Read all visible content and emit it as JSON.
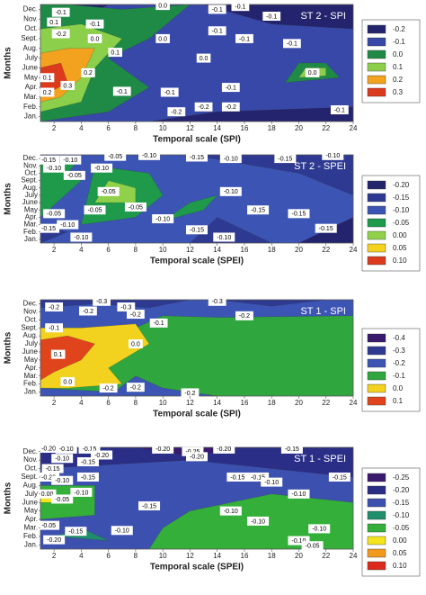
{
  "chart_data": [
    {
      "type": "contour",
      "title": "ST 2 - SPI",
      "x_label": "Temporal scale (SPI)",
      "y_label": "Months",
      "categories": [
        "Jan.",
        "Feb.",
        "Mar.",
        "Apr.",
        "May",
        "June",
        "July",
        "Aug.",
        "Sept.",
        "Oct.",
        "Nov.",
        "Dec."
      ],
      "xlim": [
        1,
        24
      ],
      "xticks": [
        2,
        4,
        6,
        8,
        10,
        12,
        14,
        16,
        18,
        20,
        22,
        24
      ],
      "levels": [
        {
          "value": -0.2,
          "label": "-0.2",
          "color": "#24246e"
        },
        {
          "value": -0.1,
          "label": "-0.1",
          "color": "#3848a8"
        },
        {
          "value": 0,
          "label": "0.0",
          "color": "#1f8a46"
        },
        {
          "value": 0.1,
          "label": "0.1",
          "color": "#8ccf4a"
        },
        {
          "value": 0.2,
          "label": "0.2",
          "color": "#f2a21e"
        },
        {
          "value": 0.3,
          "label": "0.3",
          "color": "#dc3a1c"
        }
      ],
      "labels": [
        {
          "value": -0.1,
          "label": "-0.1"
        },
        {
          "value": 0.1,
          "label": "0.1"
        },
        {
          "value": -0.2,
          "label": "-0.2"
        },
        {
          "value": 0,
          "label": "0.0"
        },
        {
          "value": -0.1,
          "label": "-0.1"
        },
        {
          "value": 0,
          "label": "0.0"
        },
        {
          "value": 0.1,
          "label": "0.1"
        },
        {
          "value": 0.2,
          "label": "0.2"
        },
        {
          "value": 0.3,
          "label": "0.3"
        },
        {
          "value": -0.1,
          "label": "-0.1"
        },
        {
          "value": 0.2,
          "label": "0.2"
        },
        {
          "value": 0.1,
          "label": "0.1"
        },
        {
          "value": 0,
          "label": "0.0"
        },
        {
          "value": -0.1,
          "label": "-0.1"
        },
        {
          "value": -0.2,
          "label": "-0.2"
        },
        {
          "value": -0.2,
          "label": "-0.2"
        },
        {
          "value": 0,
          "label": "0.0"
        },
        {
          "value": -0.1,
          "label": "-0.1"
        },
        {
          "value": -0.2,
          "label": "-0.2"
        },
        {
          "value": -0.1,
          "label": "-0.1"
        },
        {
          "value": -0.1,
          "label": "-0.1"
        },
        {
          "value": -0.1,
          "label": "-0.1"
        },
        {
          "value": -0.1,
          "label": "-0.1"
        },
        {
          "value": -0.1,
          "label": "-0.1"
        },
        {
          "value": -0.1,
          "label": "-0.1"
        },
        {
          "value": 0,
          "label": "0.0"
        },
        {
          "value": -0.1,
          "label": "-0.1"
        }
      ]
    },
    {
      "type": "contour",
      "title": "ST 2 - SPEI",
      "x_label": "Temporal scale (SPEI)",
      "y_label": "Months",
      "categories": [
        "Jan.",
        "Feb.",
        "Mar.",
        "Apr.",
        "May",
        "June",
        "July",
        "Aug.",
        "Sept.",
        "Oct.",
        "Nov.",
        "Dec."
      ],
      "xlim": [
        1,
        24
      ],
      "xticks": [
        2,
        4,
        6,
        8,
        10,
        12,
        14,
        16,
        18,
        20,
        22,
        24
      ],
      "levels": [
        {
          "value": -0.2,
          "label": "-0.20",
          "color": "#24246e"
        },
        {
          "value": -0.15,
          "label": "-0.15",
          "color": "#2e3a92"
        },
        {
          "value": -0.1,
          "label": "-0.10",
          "color": "#3c55b4"
        },
        {
          "value": -0.05,
          "label": "-0.05",
          "color": "#1f9a4a"
        },
        {
          "value": 0,
          "label": "0.00",
          "color": "#8fd24a"
        },
        {
          "value": 0.05,
          "label": "0.05",
          "color": "#f4d21e"
        },
        {
          "value": 0.1,
          "label": "0.10",
          "color": "#dc3a1c"
        }
      ],
      "labels": [
        {
          "value": -0.15,
          "label": "-0.15"
        },
        {
          "value": -0.1,
          "label": "-0.10"
        },
        {
          "value": -0.05,
          "label": "-0.05"
        },
        {
          "value": -0.1,
          "label": "-0.10"
        },
        {
          "value": -0.05,
          "label": "-0.05"
        },
        {
          "value": -0.1,
          "label": "-0.10"
        },
        {
          "value": -0.05,
          "label": "-0.05"
        },
        {
          "value": -0.1,
          "label": "-0.10"
        },
        {
          "value": -0.15,
          "label": "-0.15"
        },
        {
          "value": -0.1,
          "label": "-0.10"
        },
        {
          "value": -0.15,
          "label": "-0.15"
        },
        {
          "value": -0.1,
          "label": "-0.10"
        },
        {
          "value": -0.05,
          "label": "-0.05"
        },
        {
          "value": -0.1,
          "label": "-0.10"
        },
        {
          "value": -0.15,
          "label": "-0.15"
        },
        {
          "value": -0.1,
          "label": "-0.10"
        },
        {
          "value": -0.05,
          "label": "-0.05"
        },
        {
          "value": -0.05,
          "label": "-0.05"
        },
        {
          "value": -0.1,
          "label": "-0.10"
        },
        {
          "value": -0.15,
          "label": "-0.15"
        },
        {
          "value": -0.1,
          "label": "-0.10"
        },
        {
          "value": -0.15,
          "label": "-0.15"
        },
        {
          "value": -0.15,
          "label": "-0.15"
        },
        {
          "value": -0.1,
          "label": "-0.10"
        },
        {
          "value": -0.15,
          "label": "-0.15"
        }
      ]
    },
    {
      "type": "contour",
      "title": "ST 1 - SPI",
      "x_label": "Temporal scale (SPI)",
      "y_label": "Months",
      "categories": [
        "Jan.",
        "Feb.",
        "Mar.",
        "Apr.",
        "May",
        "June",
        "July",
        "Aug.",
        "Sept.",
        "Oct.",
        "Nov.",
        "Dec."
      ],
      "xlim": [
        1,
        24
      ],
      "xticks": [
        2,
        4,
        6,
        8,
        10,
        12,
        14,
        16,
        18,
        20,
        22,
        24
      ],
      "levels": [
        {
          "value": -0.4,
          "label": "-0.4",
          "color": "#3a1a6e"
        },
        {
          "value": -0.3,
          "label": "-0.3",
          "color": "#2e3a92"
        },
        {
          "value": -0.2,
          "label": "-0.2",
          "color": "#3c55b4"
        },
        {
          "value": -0.1,
          "label": "-0.1",
          "color": "#30a63e"
        },
        {
          "value": 0,
          "label": "0.0",
          "color": "#f2d21e"
        },
        {
          "value": 0.1,
          "label": "0.1",
          "color": "#e0441c"
        }
      ],
      "labels": [
        {
          "value": -0.2,
          "label": "-0.2"
        },
        {
          "value": -0.3,
          "label": "-0.3"
        },
        {
          "value": -0.2,
          "label": "-0.2"
        },
        {
          "value": -0.3,
          "label": "-0.3"
        },
        {
          "value": -0.2,
          "label": "-0.2"
        },
        {
          "value": -0.1,
          "label": "-0.1"
        },
        {
          "value": -0.1,
          "label": "-0.1"
        },
        {
          "value": 0,
          "label": "0.0"
        },
        {
          "value": 0.1,
          "label": "0.1"
        },
        {
          "value": 0,
          "label": "0.0"
        },
        {
          "value": -0.2,
          "label": "-0.2"
        },
        {
          "value": -0.2,
          "label": "-0.2"
        },
        {
          "value": -0.2,
          "label": "-0.2"
        },
        {
          "value": -0.3,
          "label": "-0.3"
        },
        {
          "value": -0.2,
          "label": "-0.2"
        }
      ]
    },
    {
      "type": "contour",
      "title": "ST 1 - SPEI",
      "x_label": "Temporal scale (SPEI)",
      "y_label": "Months",
      "categories": [
        "Jan.",
        "Feb.",
        "Mar.",
        "Apr.",
        "May",
        "June",
        "July",
        "Aug.",
        "Sept.",
        "Oct.",
        "Nov.",
        "Dec."
      ],
      "xlim": [
        1,
        24
      ],
      "xticks": [
        2,
        4,
        6,
        8,
        10,
        12,
        14,
        16,
        18,
        20,
        22,
        24
      ],
      "levels": [
        {
          "value": -0.25,
          "label": "-0.25",
          "color": "#3a1a6e"
        },
        {
          "value": -0.2,
          "label": "-0.20",
          "color": "#2a2e86"
        },
        {
          "value": -0.15,
          "label": "-0.15",
          "color": "#3c50b0"
        },
        {
          "value": -0.1,
          "label": "-0.10",
          "color": "#1f8e6a"
        },
        {
          "value": -0.05,
          "label": "-0.05",
          "color": "#34b03a"
        },
        {
          "value": 0,
          "label": "0.00",
          "color": "#f4e41e"
        },
        {
          "value": 0.05,
          "label": "0.05",
          "color": "#f29a1e"
        },
        {
          "value": 0.1,
          "label": "0.10",
          "color": "#dc2a1c"
        }
      ],
      "labels": [
        {
          "value": -0.2,
          "label": "-0.20"
        },
        {
          "value": -0.1,
          "label": "-0.10"
        },
        {
          "value": -0.15,
          "label": "-0.15"
        },
        {
          "value": -0.2,
          "label": "-0.20"
        },
        {
          "value": -0.1,
          "label": "-0.10"
        },
        {
          "value": -0.15,
          "label": "-0.15"
        },
        {
          "value": -0.15,
          "label": "-0.15"
        },
        {
          "value": -0.2,
          "label": "-0.20"
        },
        {
          "value": -0.1,
          "label": "-0.10"
        },
        {
          "value": 0,
          "label": "0.00"
        },
        {
          "value": -0.05,
          "label": "-0.05"
        },
        {
          "value": -0.1,
          "label": "-0.10"
        },
        {
          "value": -0.15,
          "label": "-0.15"
        },
        {
          "value": -0.2,
          "label": "-0.20"
        },
        {
          "value": -0.25,
          "label": "-0.25"
        },
        {
          "value": -0.2,
          "label": "-0.20"
        },
        {
          "value": -0.2,
          "label": "-0.20"
        },
        {
          "value": -0.15,
          "label": "-0.15"
        },
        {
          "value": -0.15,
          "label": "-0.15"
        },
        {
          "value": -0.15,
          "label": "-0.15"
        },
        {
          "value": -0.1,
          "label": "-0.10"
        },
        {
          "value": -0.15,
          "label": "-0.15"
        },
        {
          "value": -0.1,
          "label": "-0.10"
        },
        {
          "value": -0.15,
          "label": "-0.15"
        },
        {
          "value": -0.1,
          "label": "-0.10"
        },
        {
          "value": -0.1,
          "label": "-0.10"
        },
        {
          "value": -0.1,
          "label": "-0.10"
        },
        {
          "value": -0.1,
          "label": "-0.10"
        },
        {
          "value": -0.05,
          "label": "-0.05"
        },
        {
          "value": -0.2,
          "label": "-0.20"
        },
        {
          "value": -0.1,
          "label": "-0.10"
        },
        {
          "value": -0.05,
          "label": "-0.05"
        },
        {
          "value": -0.15,
          "label": "-0.15"
        }
      ]
    }
  ]
}
